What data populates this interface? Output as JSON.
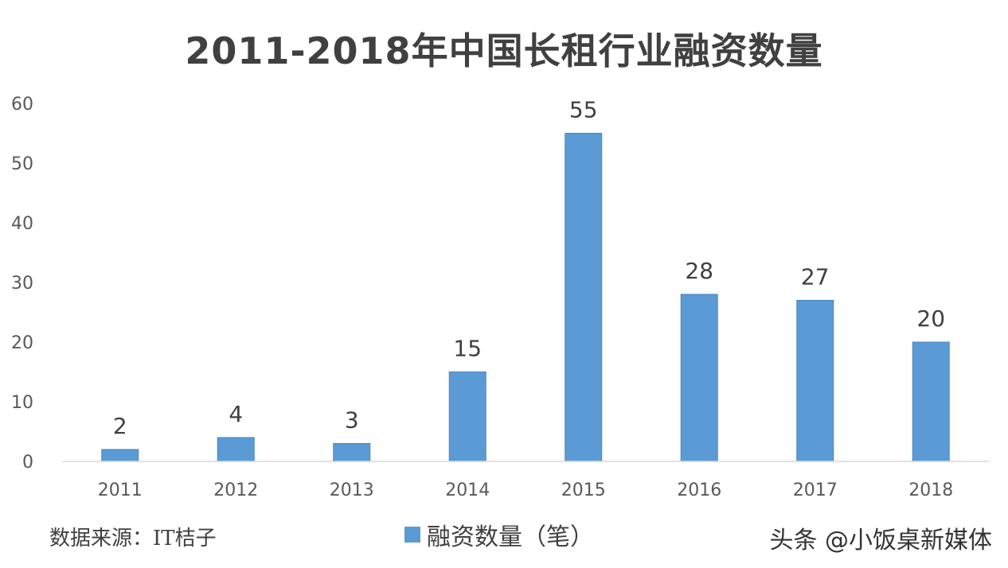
{
  "chart_data": {
    "type": "bar",
    "title": "2011-2018年中国长租行业融资数量",
    "categories": [
      "2011",
      "2012",
      "2013",
      "2014",
      "2015",
      "2016",
      "2017",
      "2018"
    ],
    "series": [
      {
        "name": "融资数量（笔）",
        "values": [
          2,
          4,
          3,
          15,
          55,
          28,
          27,
          20
        ],
        "color": "#5b9bd5"
      }
    ],
    "y_ticks": [
      "0",
      "10",
      "20",
      "30",
      "40",
      "50",
      "60"
    ],
    "ylim": [
      0,
      60
    ],
    "grid": false,
    "legend_position": "bottom",
    "data_labels": true
  },
  "footer": {
    "source": "数据来源：IT桔子",
    "watermark": "头条 @小饭桌新媒体"
  }
}
